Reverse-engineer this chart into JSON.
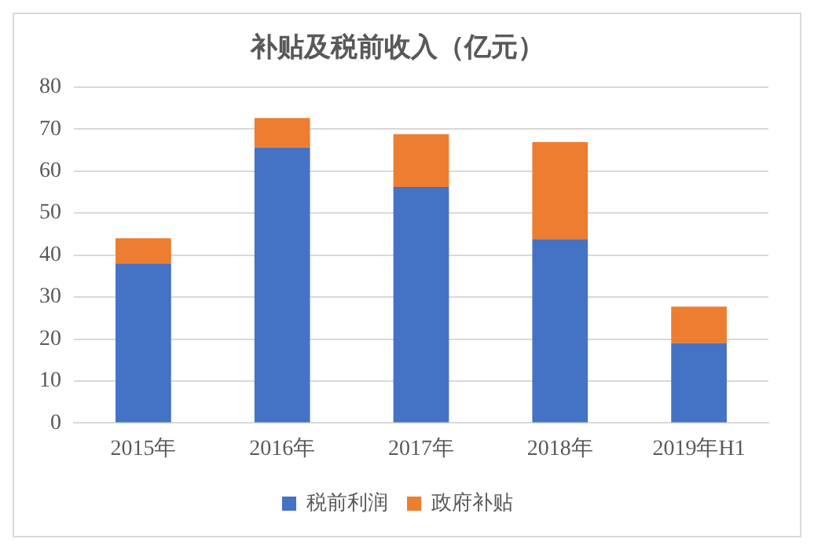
{
  "chart_data": {
    "type": "bar",
    "title": "补贴及税前收入（亿元）",
    "categories": [
      "2015年",
      "2016年",
      "2017年",
      "2018年",
      "2019年H1"
    ],
    "series": [
      {
        "name": "税前利润",
        "color": "#4472c4",
        "values": [
          38,
          65.6,
          56.2,
          43.8,
          19
        ]
      },
      {
        "name": "政府补贴",
        "color": "#ed7d31",
        "values": [
          6,
          7,
          12.6,
          23.1,
          8.7
        ]
      }
    ],
    "stacked": true,
    "ylim": [
      0,
      80
    ],
    "yticks": [
      0,
      10,
      20,
      30,
      40,
      50,
      60,
      70,
      80
    ],
    "grid": "y",
    "legend": "bottom"
  }
}
